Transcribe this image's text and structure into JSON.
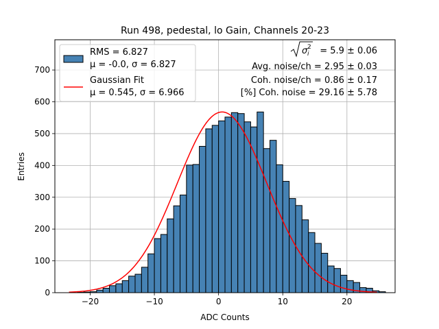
{
  "chart_data": {
    "type": "bar",
    "title": "Run 498, pedestal, lo Gain, Channels 20-23",
    "xlabel": "ADC Counts",
    "ylabel": "Entries",
    "xlim": [
      -25.5,
      27.5
    ],
    "ylim": [
      0,
      795
    ],
    "grid": true,
    "legend_position": "top-left",
    "x_ticks": [
      -20,
      -10,
      0,
      10,
      20
    ],
    "x_tick_labels": [
      "−20",
      "−10",
      "0",
      "10",
      "20"
    ],
    "y_ticks": [
      0,
      100,
      200,
      300,
      400,
      500,
      600,
      700
    ],
    "y_tick_labels": [
      "0",
      "100",
      "200",
      "300",
      "400",
      "500",
      "600",
      "700"
    ],
    "bins": {
      "start": -22,
      "width": 1,
      "counts": [
        1,
        2,
        3,
        8,
        14,
        22,
        28,
        38,
        52,
        58,
        80,
        122,
        170,
        183,
        232,
        273,
        307,
        401,
        403,
        460,
        515,
        526,
        540,
        552,
        566,
        563,
        537,
        521,
        568,
        453,
        479,
        402,
        350,
        296,
        274,
        229,
        189,
        155,
        124,
        84,
        76,
        55,
        38,
        32,
        16,
        14,
        6,
        3
      ]
    },
    "series": [
      {
        "name": "RMS = 6.827",
        "name_line2": "μ = -0.0, σ = 6.827",
        "kind": "histogram",
        "color": "#4682b4",
        "edge_color": "#000000"
      },
      {
        "name": "Gaussian Fit",
        "name_line2": "μ = 0.545, σ = 6.966",
        "kind": "line",
        "color": "#ff0000",
        "mu": 0.545,
        "sigma": 6.966,
        "amplitude": 568,
        "x_range": [
          -23.3,
          24.7
        ]
      }
    ],
    "annotations": {
      "sigma_line": " = 5.9 ± 0.06",
      "avg_noise": "Avg. noise/ch = 2.95 ± 0.03",
      "coh_noise": "Coh. noise/ch = 0.86 ± 0.17",
      "coh_pct": "[%] Coh. noise = 29.16 ± 5.78"
    }
  }
}
